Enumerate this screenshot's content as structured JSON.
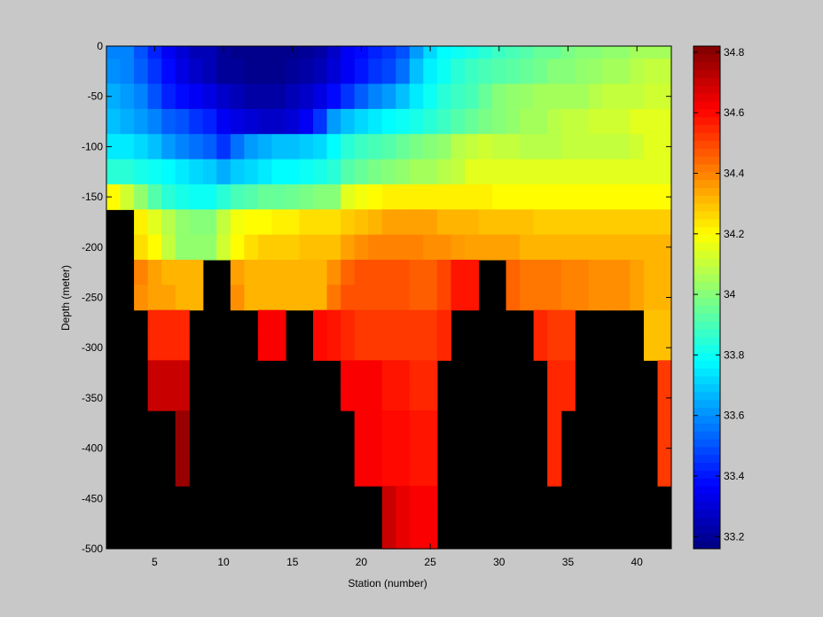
{
  "chart_data": {
    "type": "heatmap",
    "title": "",
    "xlabel": "Station (number)",
    "ylabel": "Depth (meter)",
    "xlim": [
      1.5,
      42.5
    ],
    "ylim": [
      -500,
      0
    ],
    "xticks": [
      5,
      10,
      15,
      20,
      25,
      30,
      35,
      40
    ],
    "yticks": [
      0,
      -50,
      -100,
      -150,
      -200,
      -250,
      -300,
      -350,
      -400,
      -450,
      -500
    ],
    "colorbar": {
      "colormap": "jet",
      "range": [
        33.16,
        34.82
      ],
      "ticks": [
        33.2,
        33.4,
        33.6,
        33.8,
        34,
        34.2,
        34.4,
        34.6,
        34.8
      ],
      "no_data_color": "#000000"
    },
    "stations": [
      2,
      3,
      4,
      5,
      6,
      7,
      8,
      9,
      10,
      11,
      12,
      13,
      14,
      15,
      16,
      17,
      18,
      19,
      20,
      21,
      22,
      23,
      24,
      25,
      26,
      27,
      28,
      29,
      30,
      31,
      32,
      33,
      34,
      35,
      36,
      37,
      38,
      39,
      40,
      41,
      42
    ],
    "depths": [
      0,
      -25,
      -50,
      -75,
      -100,
      -125,
      -150,
      -175,
      -200,
      -225,
      -250,
      -275,
      -300,
      -325,
      -350,
      -375,
      -400,
      -425,
      -450,
      -475,
      -500
    ],
    "values": [
      [
        33.58,
        33.58,
        33.5,
        33.42,
        33.35,
        33.3,
        33.25,
        33.25,
        33.2,
        33.18,
        33.18,
        33.18,
        33.18,
        33.18,
        33.2,
        33.22,
        33.28,
        33.35,
        33.38,
        33.42,
        33.45,
        33.5,
        33.62,
        33.72,
        33.78,
        33.8,
        33.82,
        33.85,
        33.88,
        33.9,
        33.92,
        33.95,
        33.95,
        33.98,
        34.0,
        34.0,
        34.02,
        34.02,
        34.05,
        34.05,
        34.05
      ],
      [
        33.6,
        33.58,
        33.52,
        33.45,
        33.38,
        33.32,
        33.28,
        33.25,
        33.2,
        33.2,
        33.18,
        33.18,
        33.18,
        33.2,
        33.22,
        33.25,
        33.3,
        33.35,
        33.4,
        33.45,
        33.48,
        33.55,
        33.68,
        33.76,
        33.8,
        33.85,
        33.88,
        33.9,
        33.92,
        33.93,
        33.95,
        33.97,
        34.0,
        34.0,
        34.02,
        34.03,
        34.05,
        34.05,
        34.08,
        34.1,
        34.1
      ],
      [
        33.65,
        33.62,
        33.58,
        33.5,
        33.42,
        33.38,
        33.35,
        33.32,
        33.28,
        33.25,
        33.22,
        33.22,
        33.22,
        33.25,
        33.28,
        33.32,
        33.38,
        33.45,
        33.52,
        33.58,
        33.62,
        33.68,
        33.75,
        33.8,
        33.85,
        33.88,
        33.9,
        33.95,
        34.0,
        34.02,
        34.03,
        34.05,
        34.05,
        34.05,
        34.05,
        34.08,
        34.1,
        34.1,
        34.1,
        34.12,
        34.12
      ],
      [
        33.68,
        33.65,
        33.62,
        33.58,
        33.52,
        33.5,
        33.45,
        33.42,
        33.35,
        33.32,
        33.3,
        33.28,
        33.28,
        33.3,
        33.35,
        33.45,
        33.62,
        33.68,
        33.72,
        33.75,
        33.78,
        33.8,
        33.82,
        33.85,
        33.88,
        33.92,
        33.95,
        33.98,
        34.0,
        34.02,
        34.05,
        34.05,
        34.08,
        34.1,
        34.1,
        34.12,
        34.12,
        34.12,
        34.15,
        34.15,
        34.15
      ],
      [
        33.75,
        33.75,
        33.72,
        33.68,
        33.62,
        33.58,
        33.55,
        33.52,
        33.45,
        33.55,
        33.62,
        33.65,
        33.68,
        33.68,
        33.7,
        33.72,
        33.78,
        33.85,
        33.88,
        33.9,
        33.92,
        33.95,
        33.98,
        34.0,
        34.02,
        34.08,
        34.1,
        34.12,
        34.1,
        34.1,
        34.08,
        34.08,
        34.08,
        34.1,
        34.1,
        34.1,
        34.1,
        34.1,
        34.12,
        34.15,
        34.15
      ],
      [
        33.85,
        33.85,
        33.82,
        33.8,
        33.78,
        33.75,
        33.72,
        33.7,
        33.65,
        33.7,
        33.72,
        33.75,
        33.78,
        33.78,
        33.8,
        33.82,
        33.85,
        33.92,
        33.95,
        33.98,
        34.0,
        34.02,
        34.05,
        34.05,
        34.08,
        34.1,
        34.15,
        34.15,
        34.15,
        34.15,
        34.15,
        34.15,
        34.15,
        34.15,
        34.15,
        34.15,
        34.15,
        34.15,
        34.15,
        34.15,
        34.15
      ],
      [
        34.2,
        34.12,
        34.02,
        33.92,
        33.85,
        33.82,
        33.8,
        33.8,
        33.85,
        33.9,
        33.92,
        33.95,
        33.95,
        33.96,
        33.98,
        34.0,
        34.0,
        34.15,
        34.18,
        34.2,
        34.22,
        34.22,
        34.22,
        34.22,
        34.22,
        34.22,
        34.22,
        34.22,
        34.2,
        34.2,
        34.2,
        34.2,
        34.2,
        34.2,
        34.2,
        34.2,
        34.2,
        34.2,
        34.2,
        34.2,
        34.2
      ],
      [
        null,
        null,
        34.22,
        34.15,
        34.08,
        34.02,
        34.0,
        34.0,
        34.1,
        34.18,
        34.2,
        34.2,
        34.22,
        34.22,
        34.25,
        34.25,
        34.25,
        34.28,
        34.3,
        34.32,
        34.35,
        34.35,
        34.35,
        34.35,
        34.32,
        34.32,
        34.32,
        34.3,
        34.3,
        34.3,
        34.3,
        34.28,
        34.28,
        34.28,
        34.28,
        34.28,
        34.28,
        34.28,
        34.28,
        34.28,
        34.28
      ],
      [
        null,
        null,
        34.25,
        34.2,
        34.1,
        34.02,
        34.02,
        34.02,
        34.12,
        34.2,
        34.25,
        34.28,
        34.28,
        34.28,
        34.3,
        34.3,
        34.3,
        34.35,
        34.38,
        34.4,
        34.4,
        34.4,
        34.4,
        34.38,
        34.38,
        34.36,
        34.35,
        34.35,
        34.35,
        34.35,
        34.32,
        34.32,
        34.32,
        34.32,
        34.32,
        34.32,
        34.32,
        34.32,
        34.32,
        34.32,
        34.32
      ],
      [
        null,
        null,
        34.4,
        34.35,
        34.32,
        34.32,
        34.32,
        null,
        null,
        34.35,
        34.32,
        34.32,
        34.32,
        34.32,
        34.32,
        34.32,
        34.38,
        34.45,
        34.48,
        34.48,
        34.48,
        34.48,
        34.46,
        34.46,
        34.5,
        34.58,
        34.58,
        null,
        null,
        34.45,
        34.42,
        34.42,
        34.42,
        34.4,
        34.4,
        34.38,
        34.38,
        34.38,
        34.35,
        34.32,
        34.32
      ],
      [
        null,
        null,
        34.38,
        34.35,
        34.35,
        34.32,
        34.32,
        null,
        null,
        34.38,
        34.32,
        34.32,
        34.32,
        34.32,
        34.32,
        34.32,
        34.42,
        34.48,
        34.48,
        34.48,
        34.48,
        34.48,
        34.46,
        34.46,
        34.5,
        34.58,
        34.58,
        null,
        null,
        34.45,
        34.42,
        34.42,
        34.42,
        34.4,
        34.4,
        34.38,
        34.38,
        34.38,
        34.35,
        34.32,
        34.32
      ],
      [
        null,
        null,
        null,
        34.55,
        34.55,
        34.55,
        null,
        null,
        null,
        null,
        null,
        34.62,
        34.62,
        null,
        null,
        34.6,
        34.58,
        34.55,
        34.52,
        34.52,
        34.52,
        34.52,
        34.52,
        34.52,
        34.55,
        null,
        null,
        null,
        null,
        null,
        null,
        34.55,
        34.52,
        34.52,
        null,
        null,
        null,
        null,
        null,
        34.3,
        34.3
      ],
      [
        null,
        null,
        null,
        34.55,
        34.55,
        34.55,
        null,
        null,
        null,
        null,
        null,
        34.62,
        34.62,
        null,
        null,
        34.6,
        34.58,
        34.55,
        34.52,
        34.52,
        34.52,
        34.52,
        34.52,
        34.52,
        34.55,
        null,
        null,
        null,
        null,
        null,
        null,
        34.55,
        34.52,
        34.52,
        null,
        null,
        null,
        null,
        null,
        34.3,
        34.3
      ],
      [
        null,
        null,
        null,
        34.7,
        34.7,
        34.7,
        null,
        null,
        null,
        null,
        null,
        null,
        null,
        null,
        null,
        null,
        null,
        34.62,
        34.62,
        34.62,
        34.58,
        34.58,
        34.55,
        34.55,
        null,
        null,
        null,
        null,
        null,
        null,
        null,
        null,
        34.55,
        34.55,
        null,
        null,
        null,
        null,
        null,
        null,
        34.52
      ],
      [
        null,
        null,
        null,
        34.7,
        34.7,
        34.7,
        null,
        null,
        null,
        null,
        null,
        null,
        null,
        null,
        null,
        null,
        null,
        34.62,
        34.62,
        34.62,
        34.58,
        34.58,
        34.55,
        34.55,
        null,
        null,
        null,
        null,
        null,
        null,
        null,
        null,
        34.55,
        34.55,
        null,
        null,
        null,
        null,
        null,
        null,
        34.52
      ],
      [
        null,
        null,
        null,
        null,
        null,
        34.78,
        null,
        null,
        null,
        null,
        null,
        null,
        null,
        null,
        null,
        null,
        null,
        null,
        34.62,
        34.62,
        34.6,
        34.6,
        34.58,
        34.58,
        null,
        null,
        null,
        null,
        null,
        null,
        null,
        null,
        34.55,
        null,
        null,
        null,
        null,
        null,
        null,
        null,
        34.52
      ],
      [
        null,
        null,
        null,
        null,
        null,
        34.78,
        null,
        null,
        null,
        null,
        null,
        null,
        null,
        null,
        null,
        null,
        null,
        null,
        34.62,
        34.62,
        34.6,
        34.6,
        34.58,
        34.58,
        null,
        null,
        null,
        null,
        null,
        null,
        null,
        null,
        34.55,
        null,
        null,
        null,
        null,
        null,
        null,
        null,
        34.52
      ],
      [
        null,
        null,
        null,
        null,
        null,
        34.78,
        null,
        null,
        null,
        null,
        null,
        null,
        null,
        null,
        null,
        null,
        null,
        null,
        34.62,
        34.62,
        34.6,
        34.6,
        34.58,
        34.58,
        null,
        null,
        null,
        null,
        null,
        null,
        null,
        null,
        34.55,
        null,
        null,
        null,
        null,
        null,
        null,
        null,
        34.52
      ],
      [
        null,
        null,
        null,
        null,
        null,
        null,
        null,
        null,
        null,
        null,
        null,
        null,
        null,
        null,
        null,
        null,
        null,
        null,
        null,
        null,
        34.7,
        34.65,
        34.62,
        34.62,
        null,
        null,
        null,
        null,
        null,
        null,
        null,
        null,
        null,
        null,
        null,
        null,
        null,
        null,
        null,
        null,
        null
      ],
      [
        null,
        null,
        null,
        null,
        null,
        null,
        null,
        null,
        null,
        null,
        null,
        null,
        null,
        null,
        null,
        null,
        null,
        null,
        null,
        null,
        34.7,
        34.65,
        34.62,
        34.62,
        null,
        null,
        null,
        null,
        null,
        null,
        null,
        null,
        null,
        null,
        null,
        null,
        null,
        null,
        null,
        null,
        null
      ],
      [
        null,
        null,
        null,
        null,
        null,
        null,
        null,
        null,
        null,
        null,
        null,
        null,
        null,
        null,
        null,
        null,
        null,
        null,
        null,
        null,
        34.7,
        34.65,
        34.62,
        34.62,
        null,
        null,
        null,
        null,
        null,
        null,
        null,
        null,
        null,
        null,
        null,
        null,
        null,
        null,
        null,
        null,
        null
      ]
    ]
  }
}
